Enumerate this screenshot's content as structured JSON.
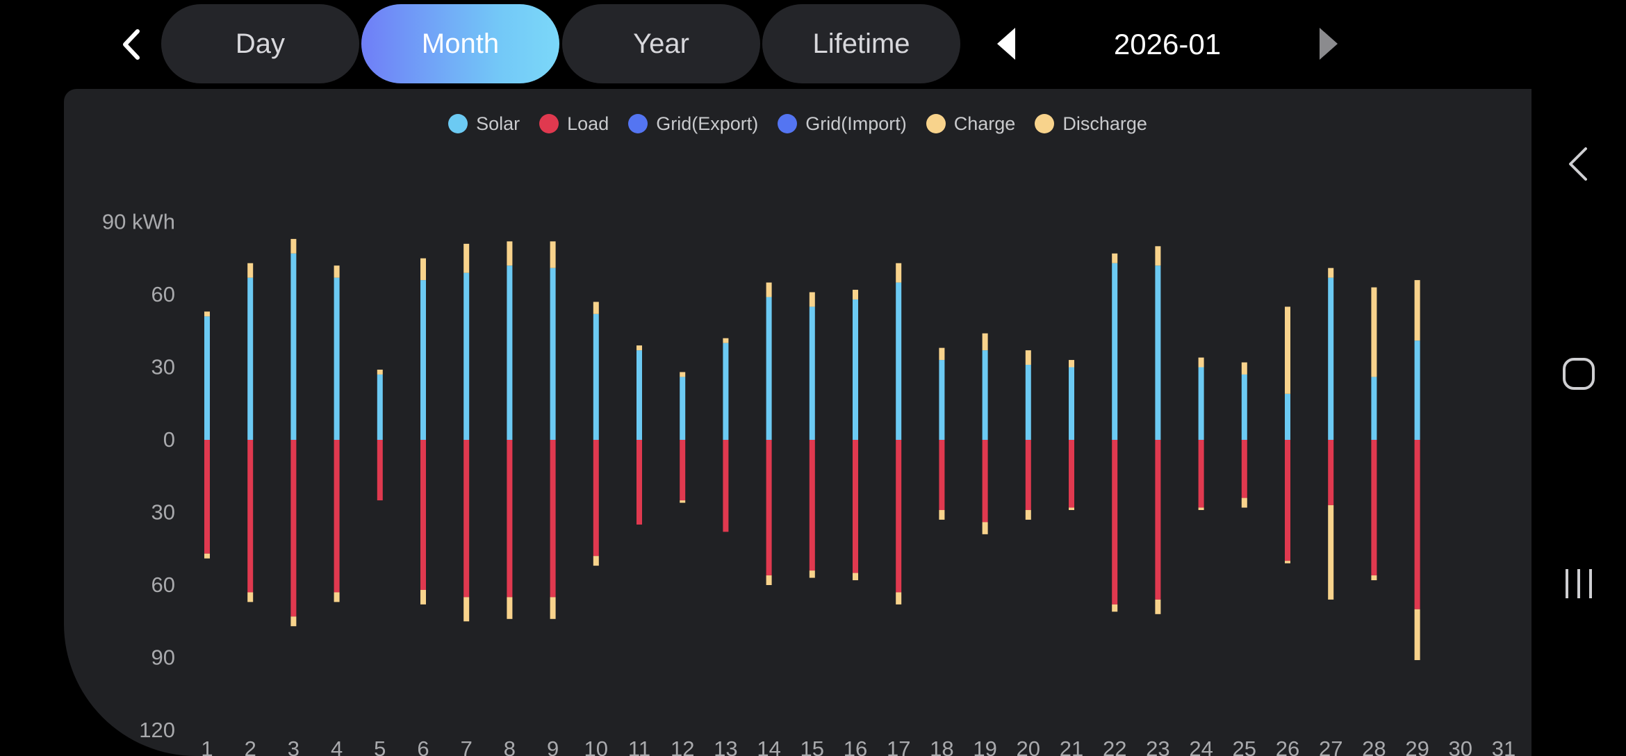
{
  "tabs": [
    {
      "label": "Day",
      "active": false
    },
    {
      "label": "Month",
      "active": true
    },
    {
      "label": "Year",
      "active": false
    },
    {
      "label": "Lifetime",
      "active": false
    }
  ],
  "period": "2026-01",
  "legend": [
    {
      "label": "Solar",
      "color": "#6ccaf3"
    },
    {
      "label": "Load",
      "color": "#e0394f"
    },
    {
      "label": "Grid(Export)",
      "color": "#5475f2"
    },
    {
      "label": "Grid(Import)",
      "color": "#5475f2"
    },
    {
      "label": "Charge",
      "color": "#f8d38c"
    },
    {
      "label": "Discharge",
      "color": "#f8d38c"
    }
  ],
  "icons": {
    "back": "chevron-left-icon",
    "prev": "triangle-left-icon",
    "next": "triangle-right-icon",
    "sys_back": "system-back-icon",
    "sys_home": "system-home-icon",
    "sys_recents": "system-recents-icon"
  },
  "chart_data": {
    "type": "bar",
    "y_unit": "kWh",
    "ylim": [
      -120,
      90
    ],
    "y_ticks": [
      {
        "value": 90,
        "label": "90 kWh"
      },
      {
        "value": 60,
        "label": "60"
      },
      {
        "value": 30,
        "label": "30"
      },
      {
        "value": 0,
        "label": "0"
      },
      {
        "value": -30,
        "label": "30"
      },
      {
        "value": -60,
        "label": "60"
      },
      {
        "value": -90,
        "label": "90"
      },
      {
        "value": -120,
        "label": "120"
      }
    ],
    "categories": [
      "1",
      "2",
      "3",
      "4",
      "5",
      "6",
      "7",
      "8",
      "9",
      "10",
      "11",
      "12",
      "13",
      "14",
      "15",
      "16",
      "17",
      "18",
      "19",
      "20",
      "21",
      "22",
      "23",
      "24",
      "25",
      "26",
      "27",
      "28",
      "29",
      "30",
      "31"
    ],
    "series": [
      {
        "name": "Solar",
        "direction": "up",
        "values": [
          51,
          67,
          77,
          67,
          27,
          66,
          69,
          72,
          71,
          52,
          37,
          26,
          40,
          59,
          55,
          58,
          65,
          33,
          37,
          31,
          30,
          73,
          72,
          30,
          27,
          19,
          67,
          26,
          41,
          0,
          0
        ]
      },
      {
        "name": "Charge",
        "direction": "up",
        "values": [
          2,
          6,
          6,
          5,
          2,
          9,
          12,
          10,
          11,
          5,
          2,
          2,
          2,
          6,
          6,
          4,
          8,
          5,
          7,
          6,
          3,
          4,
          8,
          4,
          5,
          36,
          4,
          37,
          25,
          0,
          0
        ]
      },
      {
        "name": "Load",
        "direction": "down",
        "values": [
          47,
          63,
          73,
          63,
          25,
          62,
          65,
          65,
          65,
          48,
          35,
          25,
          38,
          56,
          54,
          55,
          63,
          29,
          34,
          29,
          28,
          68,
          66,
          28,
          24,
          50,
          27,
          56,
          70,
          0,
          0
        ]
      },
      {
        "name": "Discharge",
        "direction": "down",
        "values": [
          2,
          4,
          4,
          4,
          0,
          6,
          10,
          9,
          9,
          4,
          0,
          1,
          0,
          4,
          3,
          3,
          5,
          4,
          5,
          4,
          1,
          3,
          6,
          1,
          4,
          1,
          39,
          2,
          21,
          0,
          0
        ]
      }
    ]
  }
}
